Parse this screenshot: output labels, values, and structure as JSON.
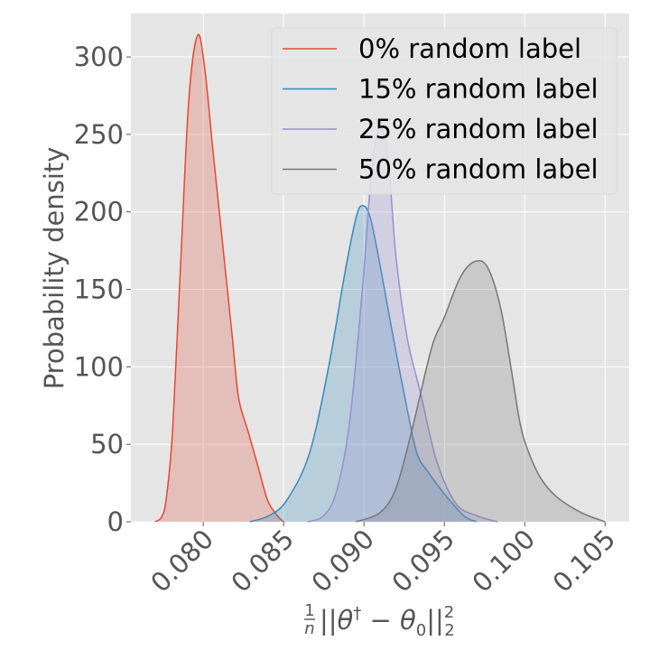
{
  "chart_data": {
    "type": "area",
    "xlabel": "$\\frac{1}{n}||\\theta^{\\dagger}-\\theta_0||_2^2$",
    "ylabel": "Probability density",
    "xlim": [
      0.0755,
      0.1065
    ],
    "ylim": [
      0,
      328
    ],
    "x_ticks": [
      0.08,
      0.085,
      0.09,
      0.095,
      0.1,
      0.105
    ],
    "x_tick_labels": [
      "0.080",
      "0.085",
      "0.090",
      "0.095",
      "0.100",
      "0.105"
    ],
    "y_ticks": [
      0,
      50,
      100,
      150,
      200,
      250,
      300
    ],
    "y_tick_labels": [
      "0",
      "50",
      "100",
      "150",
      "200",
      "250",
      "300"
    ],
    "grid": true,
    "background": "#e5e5e5",
    "legend_position": "top-right",
    "series": [
      {
        "name": "0% random label",
        "color": "#e24a33",
        "points": [
          [
            0.077,
            0
          ],
          [
            0.0774,
            3
          ],
          [
            0.0777,
            15
          ],
          [
            0.0781,
            60
          ],
          [
            0.0786,
            168
          ],
          [
            0.0791,
            272
          ],
          [
            0.07965,
            314
          ],
          [
            0.0801,
            292
          ],
          [
            0.0806,
            240
          ],
          [
            0.0812,
            180
          ],
          [
            0.0818,
            120
          ],
          [
            0.0822,
            80
          ],
          [
            0.0828,
            58
          ],
          [
            0.0834,
            36
          ],
          [
            0.084,
            14
          ],
          [
            0.0846,
            4
          ],
          [
            0.085,
            0
          ]
        ]
      },
      {
        "name": "15% random label",
        "color": "#348abd",
        "points": [
          [
            0.0829,
            0
          ],
          [
            0.0841,
            4
          ],
          [
            0.0852,
            14
          ],
          [
            0.0866,
            44
          ],
          [
            0.0878,
            100
          ],
          [
            0.0888,
            160
          ],
          [
            0.0895,
            196
          ],
          [
            0.0899,
            204
          ],
          [
            0.0904,
            196
          ],
          [
            0.0911,
            160
          ],
          [
            0.0918,
            120
          ],
          [
            0.0927,
            72
          ],
          [
            0.0933,
            44
          ],
          [
            0.094,
            32
          ],
          [
            0.095,
            18
          ],
          [
            0.0962,
            4
          ],
          [
            0.097,
            0
          ]
        ]
      },
      {
        "name": "25% random label",
        "color": "#988ed5",
        "points": [
          [
            0.0865,
            0
          ],
          [
            0.0875,
            4
          ],
          [
            0.0883,
            20
          ],
          [
            0.0891,
            64
          ],
          [
            0.0899,
            150
          ],
          [
            0.0904,
            218
          ],
          [
            0.0908,
            250
          ],
          [
            0.0912,
            252
          ],
          [
            0.0916,
            222
          ],
          [
            0.092,
            170
          ],
          [
            0.0927,
            118
          ],
          [
            0.0935,
            84
          ],
          [
            0.0945,
            40
          ],
          [
            0.0957,
            12
          ],
          [
            0.097,
            4
          ],
          [
            0.0983,
            0
          ]
        ]
      },
      {
        "name": "50% random label",
        "color": "#777777",
        "points": [
          [
            0.0895,
            0
          ],
          [
            0.091,
            6
          ],
          [
            0.092,
            22
          ],
          [
            0.093,
            60
          ],
          [
            0.0942,
            112
          ],
          [
            0.095,
            132
          ],
          [
            0.096,
            158
          ],
          [
            0.0969,
            168
          ],
          [
            0.0977,
            164
          ],
          [
            0.0985,
            138
          ],
          [
            0.0992,
            96
          ],
          [
            0.0997,
            64
          ],
          [
            0.1002,
            46
          ],
          [
            0.101,
            28
          ],
          [
            0.102,
            16
          ],
          [
            0.1035,
            6
          ],
          [
            0.105,
            0
          ]
        ]
      }
    ]
  }
}
